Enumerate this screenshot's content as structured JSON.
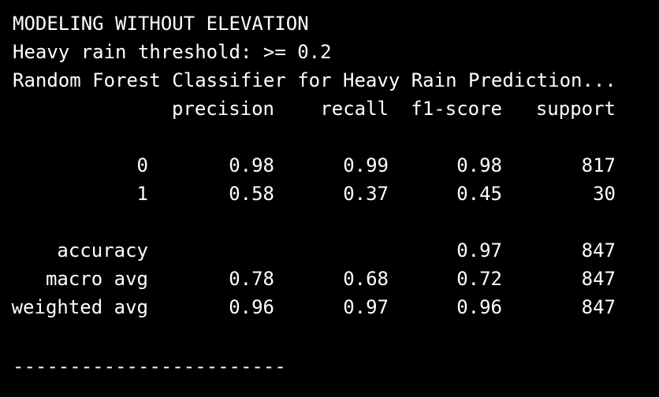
{
  "output": {
    "line1": "MODELING WITHOUT ELEVATION",
    "line2": "Heavy rain threshold: >= 0.2",
    "line3": "Random Forest Classifier for Heavy Rain Prediction...",
    "report": {
      "headers": {
        "precision": "precision",
        "recall": "recall",
        "f1": "f1-score",
        "support": "support"
      },
      "rows": [
        {
          "label": "0",
          "precision": "0.98",
          "recall": "0.99",
          "f1": "0.98",
          "support": "817"
        },
        {
          "label": "1",
          "precision": "0.58",
          "recall": "0.37",
          "f1": "0.45",
          "support": "30"
        },
        {
          "label": "accuracy",
          "precision": "",
          "recall": "",
          "f1": "0.97",
          "support": "847"
        },
        {
          "label": "macro avg",
          "precision": "0.78",
          "recall": "0.68",
          "f1": "0.72",
          "support": "847"
        },
        {
          "label": "weighted avg",
          "precision": "0.96",
          "recall": "0.97",
          "f1": "0.96",
          "support": "847"
        }
      ]
    },
    "separator": "------------------------"
  }
}
